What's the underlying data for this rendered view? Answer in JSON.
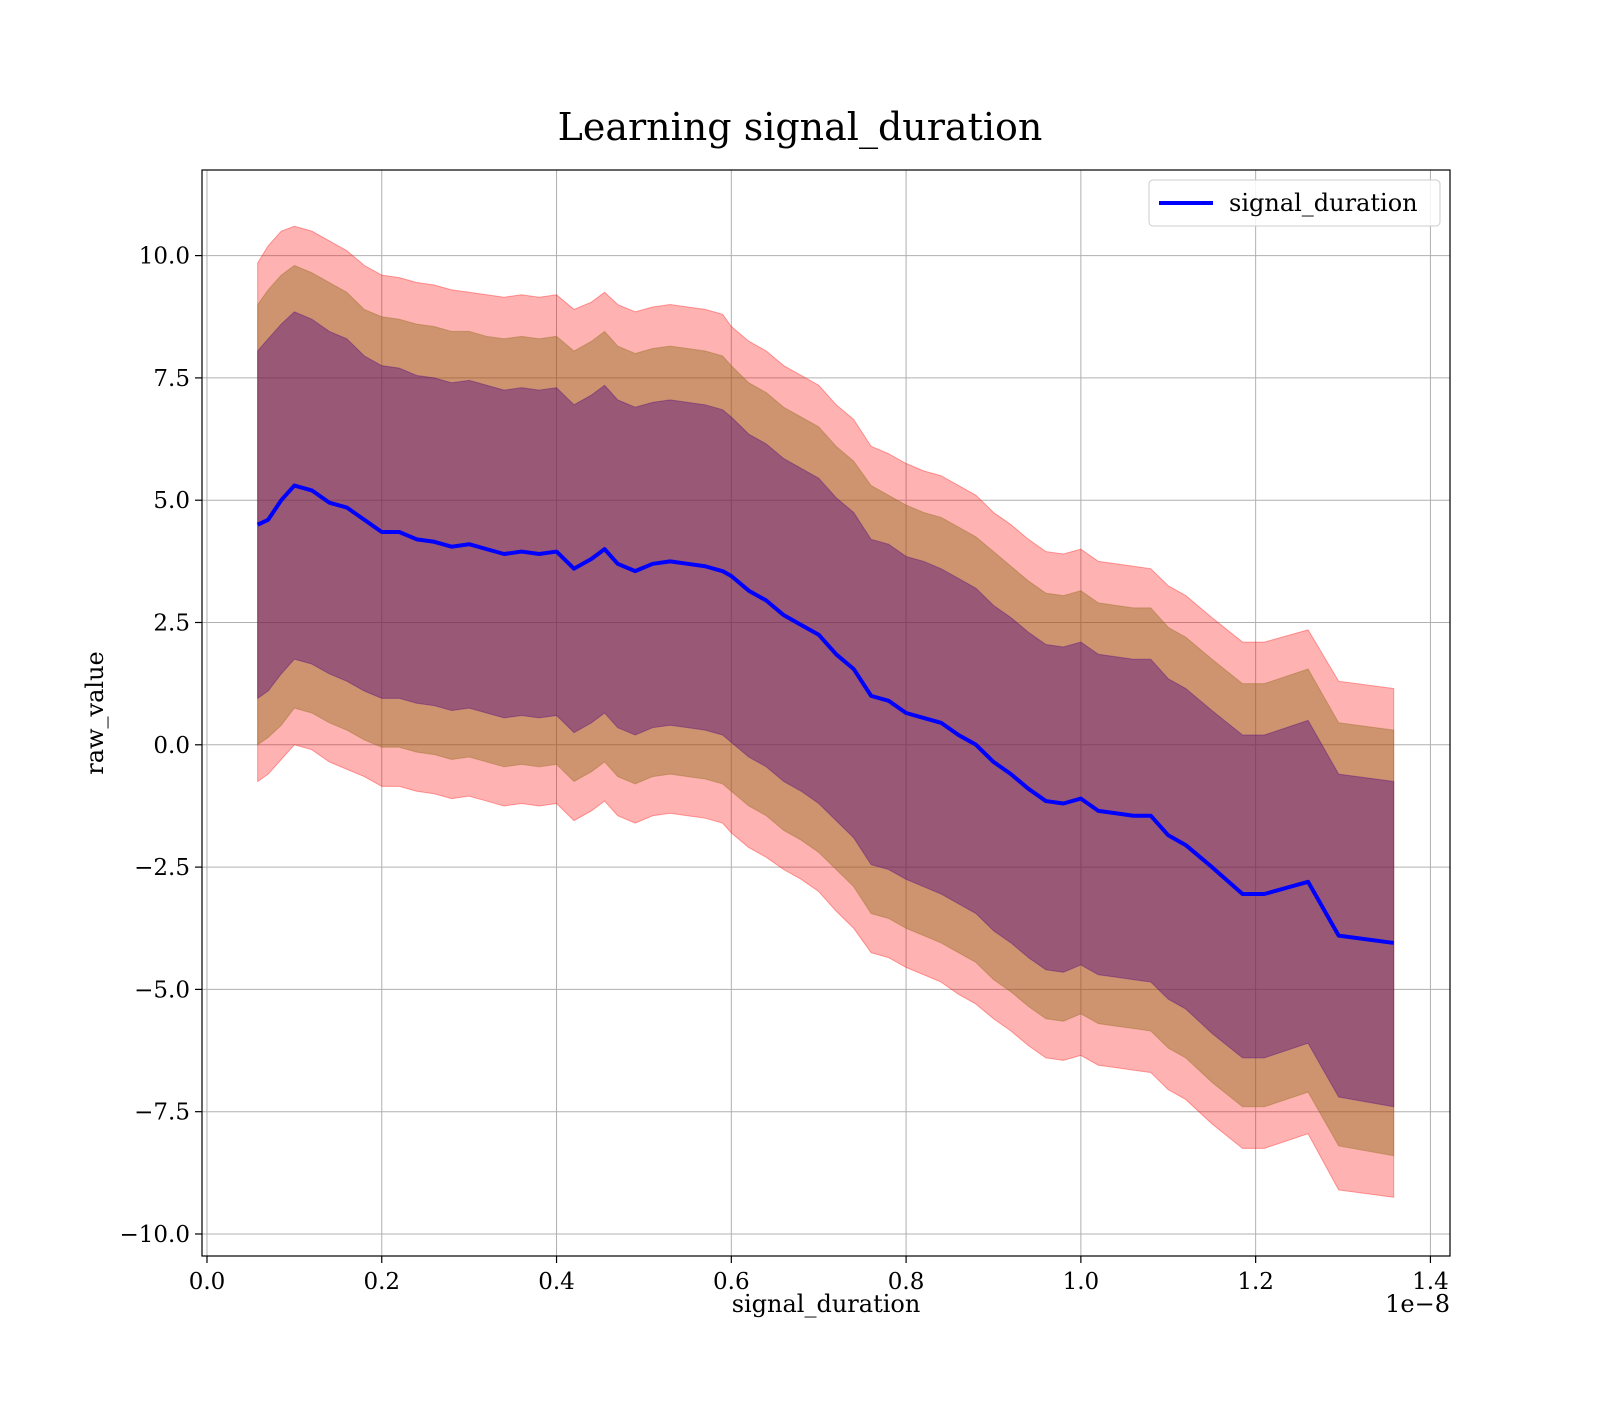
{
  "chart_data": {
    "type": "line",
    "title": "Learning signal_duration",
    "xlabel": "signal_duration",
    "ylabel": "raw_value",
    "x_offset_label": "1e−8",
    "xlim": [
      -0.0057,
      1.4224
    ],
    "ylim": [
      -10.45,
      11.75
    ],
    "grid": true,
    "legend_position": "top-right",
    "x_ticks": [
      0.0,
      0.2,
      0.4,
      0.6,
      0.8,
      1.0,
      1.2,
      1.4
    ],
    "x_tick_labels": [
      "0.0",
      "0.2",
      "0.4",
      "0.6",
      "0.8",
      "1.0",
      "1.2",
      "1.4"
    ],
    "y_ticks": [
      10.0,
      7.5,
      5.0,
      2.5,
      0.0,
      -2.5,
      -5.0,
      -7.5,
      -10.0
    ],
    "y_tick_labels": [
      "10.0",
      "7.5",
      "5.0",
      "2.5",
      "0.0",
      "−2.5",
      "−5.0",
      "−7.5",
      "−10.0"
    ],
    "colors": {
      "line": "#0000ff",
      "band_outer": "#ff0000",
      "band_middle": "#8b6914",
      "band_inner": "#4b0082",
      "grid": "#b0b0b0"
    },
    "x": [
      0.058,
      0.07,
      0.085,
      0.1,
      0.12,
      0.14,
      0.16,
      0.18,
      0.2,
      0.22,
      0.24,
      0.26,
      0.28,
      0.3,
      0.32,
      0.34,
      0.36,
      0.38,
      0.4,
      0.42,
      0.44,
      0.455,
      0.47,
      0.49,
      0.51,
      0.53,
      0.55,
      0.57,
      0.59,
      0.6,
      0.62,
      0.64,
      0.66,
      0.68,
      0.7,
      0.72,
      0.74,
      0.76,
      0.78,
      0.8,
      0.82,
      0.84,
      0.86,
      0.88,
      0.9,
      0.92,
      0.94,
      0.96,
      0.98,
      1.0,
      1.02,
      1.04,
      1.06,
      1.08,
      1.1,
      1.12,
      1.15,
      1.185,
      1.21,
      1.26,
      1.295,
      1.358
    ],
    "series": [
      {
        "name": "signal_duration",
        "values": [
          4.5,
          4.6,
          5.0,
          5.3,
          5.2,
          4.95,
          4.85,
          4.6,
          4.35,
          4.35,
          4.2,
          4.15,
          4.05,
          4.1,
          4.0,
          3.9,
          3.95,
          3.9,
          3.95,
          3.6,
          3.8,
          4.0,
          3.7,
          3.55,
          3.7,
          3.75,
          3.7,
          3.65,
          3.55,
          3.45,
          3.15,
          2.95,
          2.65,
          2.45,
          2.25,
          1.85,
          1.55,
          1.0,
          0.9,
          0.65,
          0.55,
          0.45,
          0.2,
          0.0,
          -0.35,
          -0.6,
          -0.9,
          -1.15,
          -1.2,
          -1.1,
          -1.35,
          -1.4,
          -1.45,
          -1.45,
          -1.85,
          -2.05,
          -2.5,
          -3.05,
          -3.05,
          -2.8,
          -3.9,
          -4.05
        ]
      }
    ],
    "bands": [
      {
        "level": "outer",
        "upper": [
          9.85,
          10.2,
          10.5,
          10.6,
          10.5,
          10.3,
          10.1,
          9.8,
          9.6,
          9.55,
          9.45,
          9.4,
          9.3,
          9.25,
          9.2,
          9.15,
          9.2,
          9.15,
          9.2,
          8.9,
          9.05,
          9.25,
          9.0,
          8.85,
          8.95,
          9.0,
          8.95,
          8.9,
          8.8,
          8.55,
          8.25,
          8.05,
          7.75,
          7.55,
          7.35,
          6.95,
          6.65,
          6.1,
          5.95,
          5.75,
          5.6,
          5.5,
          5.3,
          5.1,
          4.75,
          4.5,
          4.2,
          3.95,
          3.9,
          4.0,
          3.75,
          3.7,
          3.65,
          3.6,
          3.25,
          3.05,
          2.6,
          2.1,
          2.1,
          2.35,
          1.3,
          1.15
        ],
        "lower": [
          -0.75,
          -0.6,
          -0.3,
          0.0,
          -0.1,
          -0.35,
          -0.5,
          -0.65,
          -0.85,
          -0.85,
          -0.95,
          -1.0,
          -1.1,
          -1.05,
          -1.15,
          -1.25,
          -1.2,
          -1.25,
          -1.2,
          -1.55,
          -1.35,
          -1.15,
          -1.45,
          -1.6,
          -1.45,
          -1.4,
          -1.45,
          -1.5,
          -1.6,
          -1.8,
          -2.1,
          -2.3,
          -2.55,
          -2.75,
          -3.0,
          -3.4,
          -3.75,
          -4.25,
          -4.35,
          -4.55,
          -4.7,
          -4.85,
          -5.1,
          -5.3,
          -5.6,
          -5.85,
          -6.15,
          -6.4,
          -6.45,
          -6.35,
          -6.55,
          -6.6,
          -6.65,
          -6.7,
          -7.05,
          -7.25,
          -7.75,
          -8.25,
          -8.25,
          -7.95,
          -9.1,
          -9.25
        ]
      },
      {
        "level": "middle",
        "upper": [
          9.0,
          9.3,
          9.6,
          9.8,
          9.65,
          9.45,
          9.25,
          8.9,
          8.75,
          8.7,
          8.6,
          8.55,
          8.45,
          8.45,
          8.35,
          8.3,
          8.35,
          8.3,
          8.35,
          8.05,
          8.25,
          8.45,
          8.15,
          8.0,
          8.1,
          8.15,
          8.1,
          8.05,
          7.95,
          7.75,
          7.4,
          7.2,
          6.9,
          6.7,
          6.5,
          6.1,
          5.8,
          5.3,
          5.1,
          4.9,
          4.75,
          4.65,
          4.45,
          4.25,
          3.95,
          3.65,
          3.35,
          3.1,
          3.05,
          3.15,
          2.9,
          2.85,
          2.8,
          2.8,
          2.4,
          2.2,
          1.75,
          1.25,
          1.25,
          1.55,
          0.45,
          0.3
        ],
        "lower": [
          0.0,
          0.15,
          0.4,
          0.75,
          0.65,
          0.45,
          0.3,
          0.1,
          -0.05,
          -0.05,
          -0.15,
          -0.2,
          -0.3,
          -0.25,
          -0.35,
          -0.45,
          -0.4,
          -0.45,
          -0.4,
          -0.75,
          -0.55,
          -0.35,
          -0.65,
          -0.8,
          -0.65,
          -0.6,
          -0.65,
          -0.7,
          -0.8,
          -0.95,
          -1.25,
          -1.45,
          -1.75,
          -1.95,
          -2.2,
          -2.55,
          -2.9,
          -3.45,
          -3.55,
          -3.75,
          -3.9,
          -4.05,
          -4.25,
          -4.45,
          -4.8,
          -5.05,
          -5.35,
          -5.6,
          -5.65,
          -5.5,
          -5.7,
          -5.75,
          -5.8,
          -5.85,
          -6.2,
          -6.4,
          -6.9,
          -7.4,
          -7.4,
          -7.1,
          -8.2,
          -8.4
        ]
      },
      {
        "level": "inner",
        "upper": [
          8.05,
          8.3,
          8.6,
          8.85,
          8.7,
          8.45,
          8.3,
          7.95,
          7.75,
          7.7,
          7.55,
          7.5,
          7.4,
          7.45,
          7.35,
          7.25,
          7.3,
          7.25,
          7.3,
          6.95,
          7.15,
          7.35,
          7.05,
          6.9,
          7.0,
          7.05,
          7.0,
          6.95,
          6.85,
          6.7,
          6.35,
          6.15,
          5.85,
          5.65,
          5.45,
          5.05,
          4.75,
          4.2,
          4.1,
          3.85,
          3.75,
          3.6,
          3.4,
          3.2,
          2.85,
          2.6,
          2.3,
          2.05,
          2.0,
          2.1,
          1.85,
          1.8,
          1.75,
          1.75,
          1.35,
          1.15,
          0.7,
          0.2,
          0.2,
          0.5,
          -0.6,
          -0.75
        ],
        "lower": [
          0.95,
          1.1,
          1.45,
          1.75,
          1.65,
          1.45,
          1.3,
          1.1,
          0.95,
          0.95,
          0.85,
          0.8,
          0.7,
          0.75,
          0.65,
          0.55,
          0.6,
          0.55,
          0.6,
          0.25,
          0.45,
          0.65,
          0.35,
          0.2,
          0.35,
          0.4,
          0.35,
          0.3,
          0.2,
          0.05,
          -0.25,
          -0.45,
          -0.75,
          -0.95,
          -1.2,
          -1.55,
          -1.9,
          -2.45,
          -2.55,
          -2.75,
          -2.9,
          -3.05,
          -3.25,
          -3.45,
          -3.8,
          -4.05,
          -4.35,
          -4.6,
          -4.65,
          -4.5,
          -4.7,
          -4.75,
          -4.8,
          -4.85,
          -5.2,
          -5.4,
          -5.9,
          -6.4,
          -6.4,
          -6.1,
          -7.2,
          -7.4
        ]
      }
    ]
  }
}
